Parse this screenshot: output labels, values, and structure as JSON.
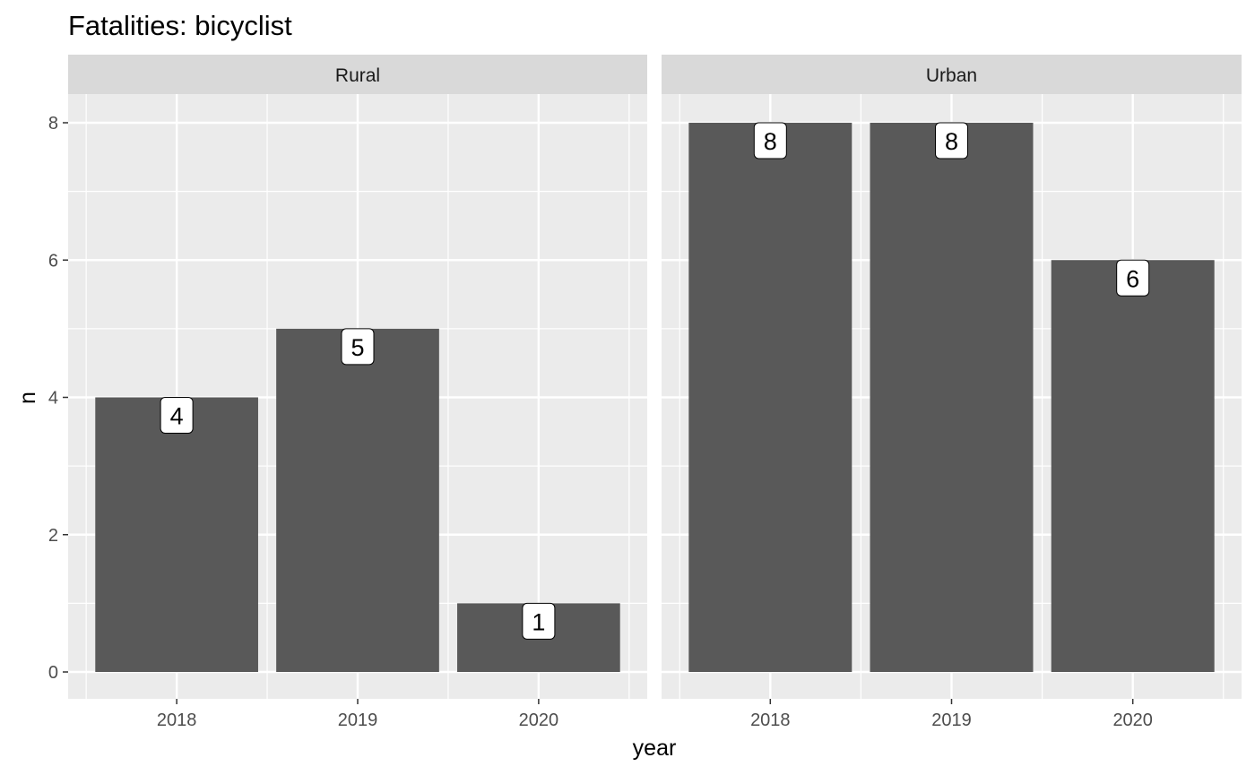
{
  "chart_data": {
    "type": "bar",
    "title": "Fatalities: bicyclist",
    "xlabel": "year",
    "ylabel": "n",
    "ylim": [
      0,
      8
    ],
    "y_ticks": [
      0,
      2,
      4,
      6,
      8
    ],
    "grid": true,
    "categories": [
      "2018",
      "2019",
      "2020"
    ],
    "panels": [
      {
        "name": "Rural",
        "values": [
          4,
          5,
          1
        ]
      },
      {
        "name": "Urban",
        "values": [
          8,
          8,
          6
        ]
      }
    ],
    "colors": {
      "bar": "#595959",
      "panel_background": "#ebebeb",
      "strip_background": "#d9d9d9",
      "grid": "#ffffff",
      "label_fill": "#ffffff",
      "label_border": "#000000"
    }
  }
}
